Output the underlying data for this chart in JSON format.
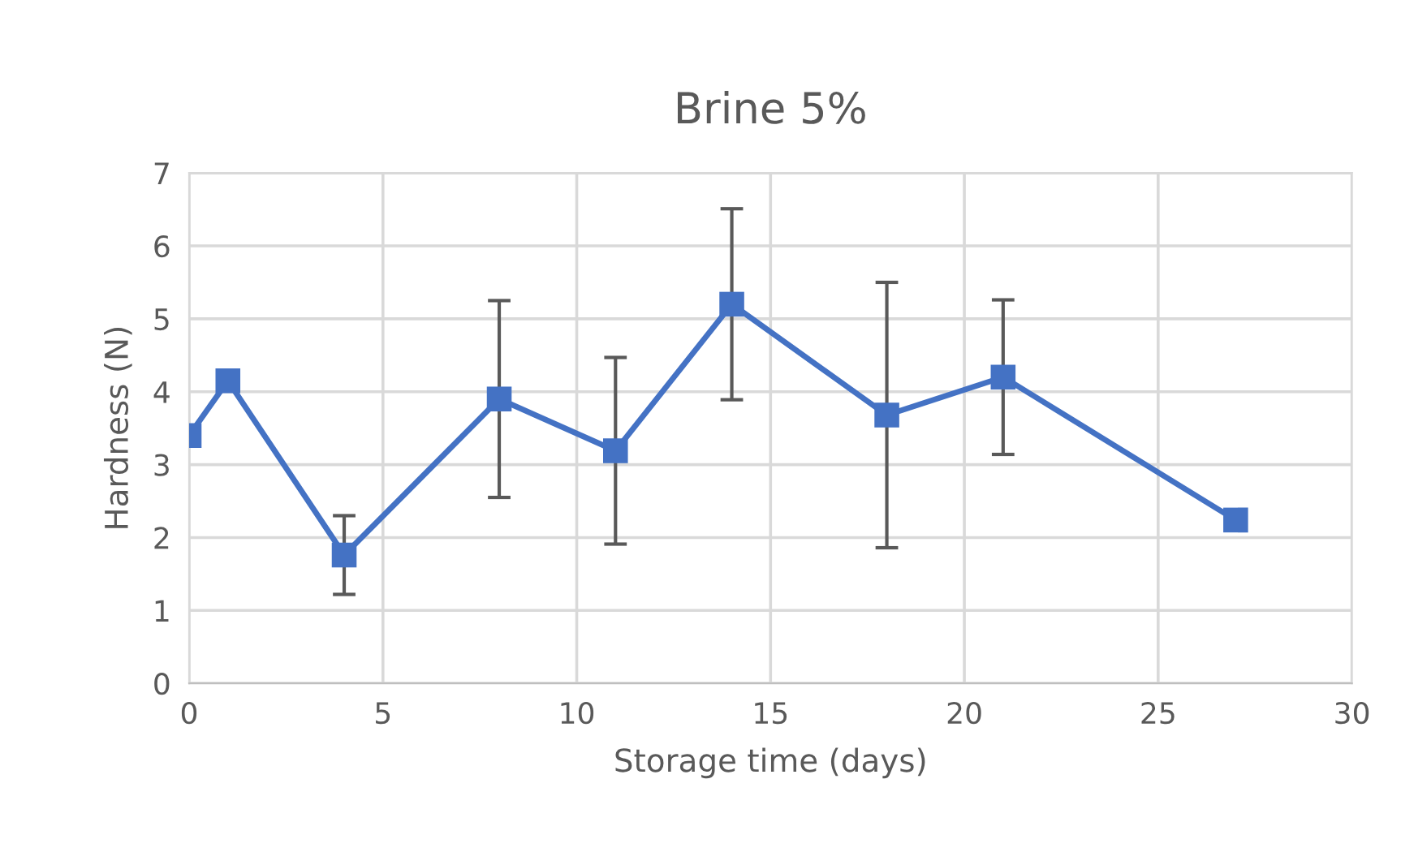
{
  "chart_data": {
    "type": "line",
    "title": "Brine 5%",
    "xlabel": "Storage time (days)",
    "ylabel": "Hardness (N)",
    "x": [
      0,
      1,
      4,
      8,
      11,
      14,
      18,
      21,
      27
    ],
    "series": [
      {
        "color": "#4472c4",
        "values": [
          3.4,
          4.15,
          1.76,
          3.9,
          3.19,
          5.2,
          3.68,
          4.2,
          2.24
        ],
        "errors": [
          null,
          null,
          0.54,
          1.35,
          1.28,
          1.31,
          1.82,
          1.06,
          null
        ]
      }
    ],
    "xlim": [
      0,
      30
    ],
    "xticks": [
      0,
      5,
      10,
      15,
      20,
      25,
      30
    ],
    "ylim": [
      0,
      7
    ],
    "yticks": [
      0,
      1,
      2,
      3,
      4,
      5,
      6,
      7
    ],
    "grid": true,
    "marker": "square",
    "line_style": "solid"
  }
}
